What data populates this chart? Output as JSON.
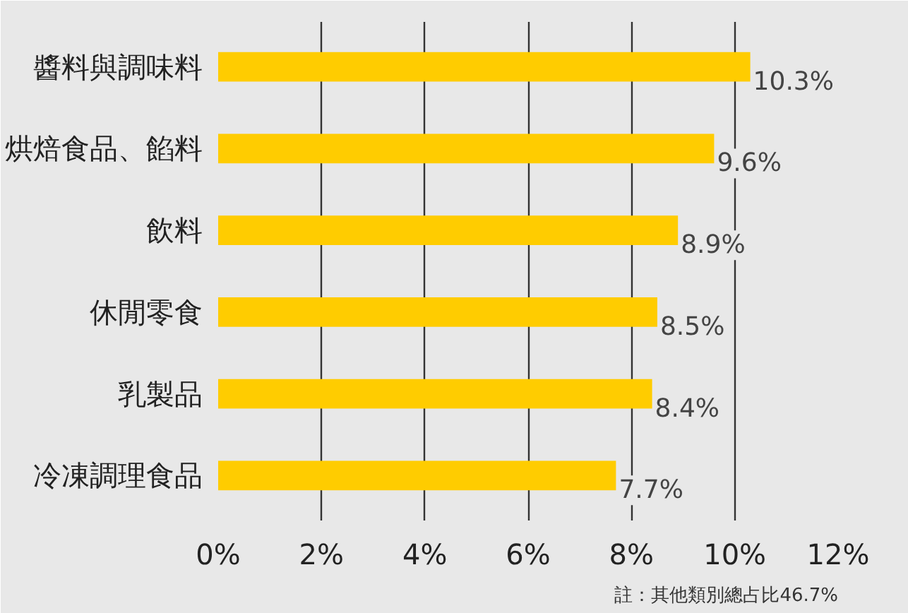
{
  "chart_data": {
    "type": "bar",
    "orientation": "horizontal",
    "categories": [
      "醬料與調味料",
      "烘焙食品、餡料",
      "飲料",
      "休閒零食",
      "乳製品",
      "冷凍調理食品"
    ],
    "values": [
      10.3,
      9.6,
      8.9,
      8.5,
      8.4,
      7.7
    ],
    "value_labels": [
      "10.3%",
      "9.6%",
      "8.9%",
      "8.5%",
      "8.4%",
      "7.7%"
    ],
    "color": "#ffcc00",
    "xlim": [
      0,
      12
    ],
    "xticks": [
      {
        "value": 0,
        "label": "0%"
      },
      {
        "value": 2,
        "label": "2%"
      },
      {
        "value": 4,
        "label": "4%"
      },
      {
        "value": 6,
        "label": "6%"
      },
      {
        "value": 8,
        "label": "8%"
      },
      {
        "value": 10,
        "label": "10%"
      },
      {
        "value": 12,
        "label": "12%"
      }
    ],
    "grid": "x",
    "annotations": [
      "註：其他類別總占比46.7%"
    ]
  }
}
